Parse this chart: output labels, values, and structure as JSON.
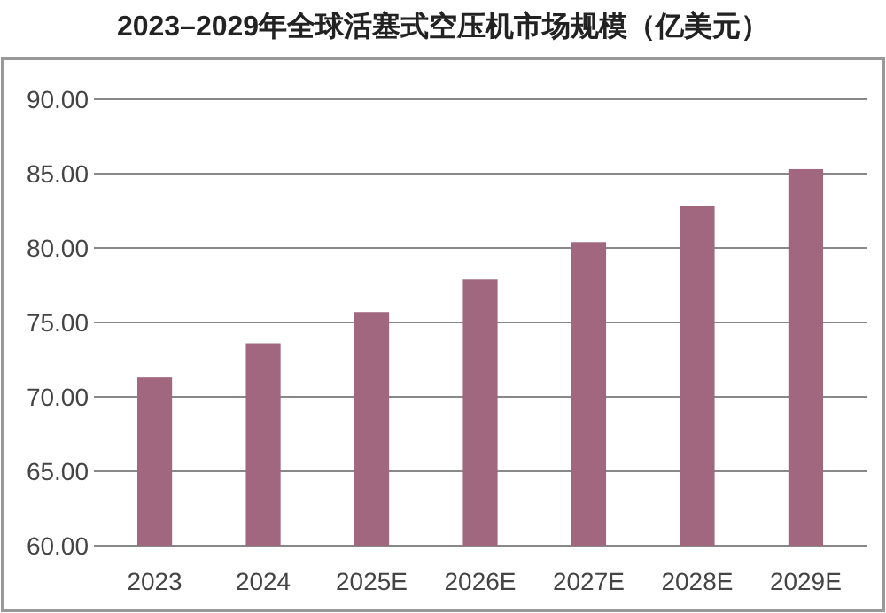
{
  "chart_data": {
    "type": "bar",
    "title": "2023–2029年全球活塞式空压机市场规模（亿美元）",
    "categories": [
      "2023",
      "2024",
      "2025E",
      "2026E",
      "2027E",
      "2028E",
      "2029E"
    ],
    "values": [
      71.3,
      73.6,
      75.7,
      77.9,
      80.4,
      82.8,
      85.3
    ],
    "color": "#a0677f",
    "ylim": [
      60,
      90
    ],
    "yticks": [
      {
        "value": 60,
        "label": "60.00"
      },
      {
        "value": 65,
        "label": "65.00"
      },
      {
        "value": 70,
        "label": "70.00"
      },
      {
        "value": 75,
        "label": "75.00"
      },
      {
        "value": 80,
        "label": "80.00"
      },
      {
        "value": 85,
        "label": "85.00"
      },
      {
        "value": 90,
        "label": "90.00"
      }
    ],
    "grid": "y"
  }
}
